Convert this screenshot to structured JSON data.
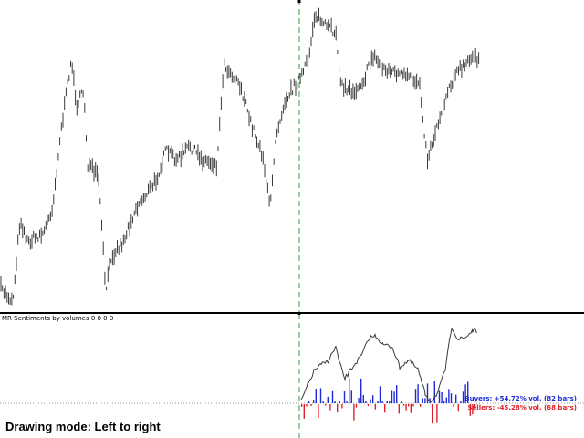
{
  "indicator_title": "MR-Sentiments by volumes 0 0 0 0",
  "legend": {
    "buyers": "Buyers: +54.72% vol. (82 bars)",
    "sellers": "Sellers: -45.28% vol. (68 bars)"
  },
  "drawing_mode": "Drawing mode: Left to right",
  "colors": {
    "price": "#3a3a3a",
    "buyers": "#1f2bd6",
    "sellers": "#e0212b",
    "cursor": "#2e9e3a",
    "sentiment_line": "#3a3a3a"
  }
}
